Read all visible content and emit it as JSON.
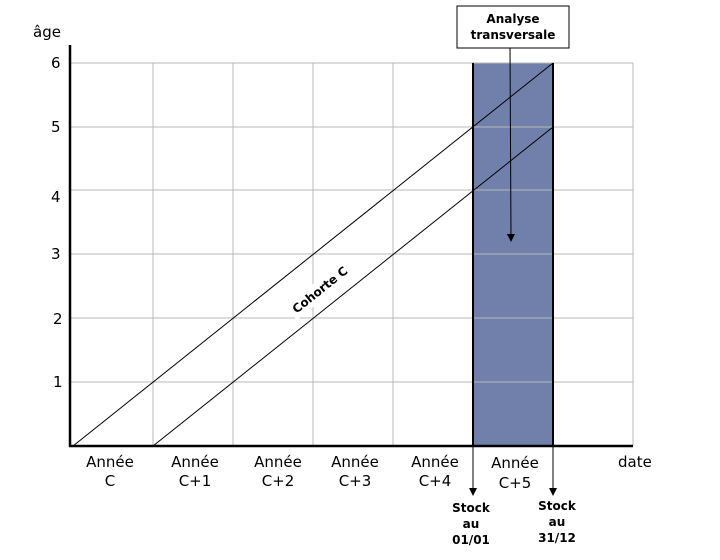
{
  "axes": {
    "y_label": "âge",
    "x_label": "date",
    "y_ticks": [
      "1",
      "2",
      "3",
      "4",
      "5",
      "6"
    ],
    "x_categories": [
      {
        "line1": "Année",
        "line2": "C"
      },
      {
        "line1": "Année",
        "line2": "C+1"
      },
      {
        "line1": "Année",
        "line2": "C+2"
      },
      {
        "line1": "Année",
        "line2": "C+3"
      },
      {
        "line1": "Année",
        "line2": "C+4"
      },
      {
        "line1": "Année",
        "line2": "C+5"
      }
    ]
  },
  "cohort": {
    "label": "Cohorte C"
  },
  "transversal": {
    "line1": "Analyse",
    "line2": "transversale",
    "color": "#7080ab"
  },
  "stock_start": {
    "line1": "Stock",
    "line2": "au",
    "line3": "01/01"
  },
  "stock_end": {
    "line1": "Stock",
    "line2": "au",
    "line3": "31/12"
  }
}
